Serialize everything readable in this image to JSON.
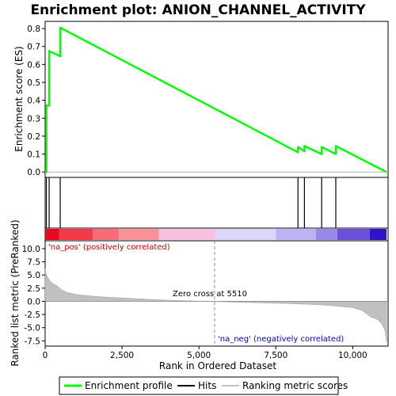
{
  "chart_data": {
    "type": "line",
    "title": "Enrichment plot: ANION_CHANNEL_ACTIVITY",
    "xlabel": "Rank in Ordered Dataset",
    "ylabel_top": "Enrichment score (ES)",
    "ylabel_bottom": "Ranked list metric (PreRanked)",
    "xlim": [
      0,
      11150
    ],
    "x_ticks": [
      0,
      2500,
      5000,
      7500,
      10000
    ],
    "x_tick_labels": [
      "0",
      "2,500",
      "5,000",
      "7,500",
      "10,000"
    ],
    "es_ylim": [
      -0.03,
      0.84
    ],
    "es_ticks": [
      0.0,
      0.1,
      0.2,
      0.3,
      0.4,
      0.5,
      0.6,
      0.7,
      0.8
    ],
    "es_tick_labels": [
      "0.0",
      "0.1",
      "0.2",
      "0.3",
      "0.4",
      "0.5",
      "0.6",
      "0.7",
      "0.8"
    ],
    "metric_ylim": [
      -8.5,
      11.5
    ],
    "metric_ticks": [
      10.0,
      7.5,
      5.0,
      2.5,
      0.0,
      -2.5,
      -5.0,
      -7.5
    ],
    "metric_tick_labels": [
      "10.0",
      "7.5",
      "5.0",
      "2.5",
      "0.0",
      "-2.5",
      "-5.0",
      "-7.5"
    ],
    "enrichment_profile": {
      "name": "Enrichment profile",
      "color": "#00ff00",
      "x": [
        0,
        40,
        40,
        130,
        130,
        490,
        490,
        8220,
        8220,
        8430,
        8430,
        8990,
        8990,
        9450,
        9450,
        11100
      ],
      "y": [
        0.0,
        0.0,
        0.37,
        0.37,
        0.675,
        0.645,
        0.805,
        0.11,
        0.14,
        0.115,
        0.145,
        0.1,
        0.14,
        0.1,
        0.145,
        0.0
      ]
    },
    "hits": {
      "name": "Hits",
      "color": "#000000",
      "x": [
        40,
        130,
        490,
        8220,
        8430,
        8990,
        9450
      ]
    },
    "ranking_metric": {
      "name": "Ranking metric scores",
      "color": "#c0c0c0",
      "x": [
        0,
        20,
        60,
        120,
        200,
        300,
        400,
        500,
        700,
        1000,
        1500,
        2000,
        2500,
        3000,
        3500,
        4000,
        4500,
        5000,
        5510,
        6000,
        6500,
        7000,
        7500,
        8000,
        8500,
        9000,
        9500,
        10000,
        10300,
        10600,
        10800,
        10950,
        11050,
        11100
      ],
      "y": [
        6.2,
        5.5,
        4.8,
        4.2,
        3.6,
        3.2,
        2.9,
        2.3,
        1.7,
        1.3,
        1.0,
        0.8,
        0.65,
        0.5,
        0.35,
        0.22,
        0.12,
        0.05,
        0.0,
        -0.12,
        -0.2,
        -0.28,
        -0.35,
        -0.45,
        -0.55,
        -0.7,
        -0.9,
        -1.2,
        -1.7,
        -3.0,
        -3.4,
        -4.3,
        -5.5,
        -7.8
      ]
    },
    "zero_cross": 5510,
    "annotations": {
      "pos_label": "'na_pos' (positively correlated)",
      "neg_label": "'na_neg' (negatively correlated)",
      "zero_label": "Zero cross at 5510"
    },
    "colorbar": {
      "segments": [
        {
          "from": 0,
          "to": 450,
          "color": "#e8081f"
        },
        {
          "from": 450,
          "to": 1550,
          "color": "#f23a4a"
        },
        {
          "from": 1550,
          "to": 2400,
          "color": "#f76c78"
        },
        {
          "from": 2400,
          "to": 3700,
          "color": "#fa9399"
        },
        {
          "from": 3700,
          "to": 5510,
          "color": "#fac0e0"
        },
        {
          "from": 5510,
          "to": 7500,
          "color": "#dcd6fa"
        },
        {
          "from": 7500,
          "to": 8800,
          "color": "#beb4f4"
        },
        {
          "from": 8800,
          "to": 9500,
          "color": "#978ae8"
        },
        {
          "from": 9500,
          "to": 10550,
          "color": "#6a4fd8"
        },
        {
          "from": 10550,
          "to": 11100,
          "color": "#2e14c8"
        }
      ]
    },
    "legend": {
      "placement": "bottom",
      "entries": [
        {
          "label": "Enrichment profile",
          "color": "#00ff00"
        },
        {
          "label": "Hits",
          "color": "#000000"
        },
        {
          "label": "Ranking metric scores",
          "color": "#c0c0c0"
        }
      ]
    }
  }
}
